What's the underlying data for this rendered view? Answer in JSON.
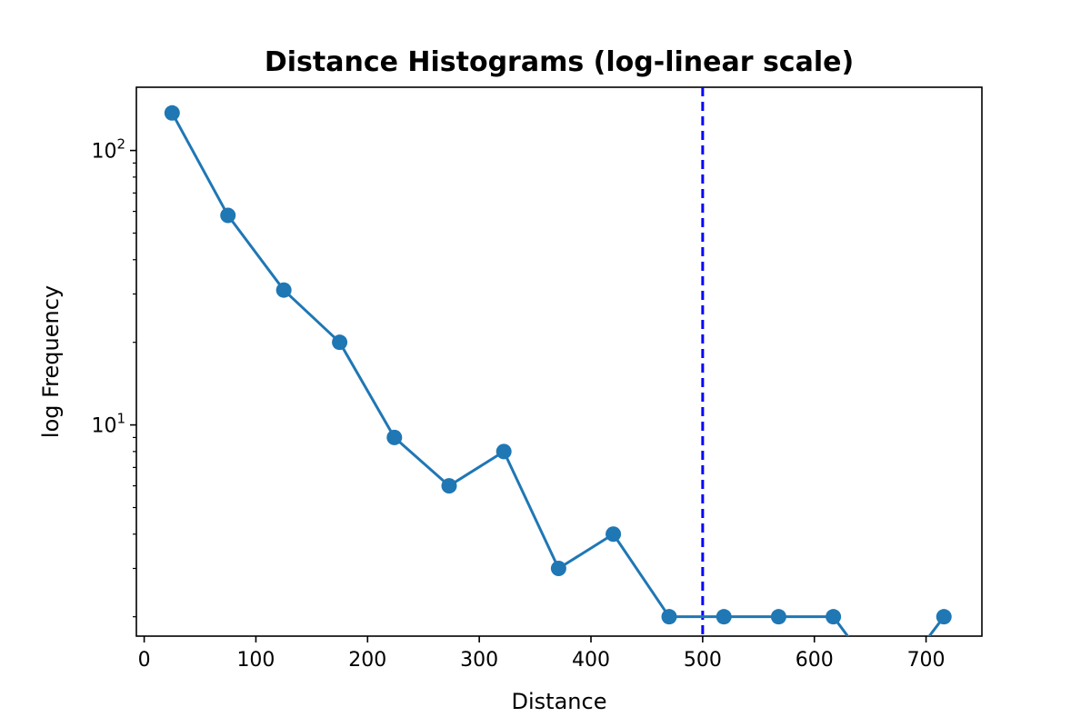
{
  "chart_data": {
    "type": "line",
    "title": "Distance Histograms (log-linear scale)",
    "xlabel": "Distance",
    "ylabel": "log Frequency",
    "xlim": [
      -7,
      750
    ],
    "ylim": [
      1.7,
      170
    ],
    "yscale": "log",
    "grid": false,
    "xticks": [
      0,
      100,
      200,
      300,
      400,
      500,
      600,
      700
    ],
    "yticks": [
      {
        "value": 10,
        "base": "10",
        "exp": "1"
      },
      {
        "value": 100,
        "base": "10",
        "exp": "2"
      }
    ],
    "series": [
      {
        "color": "#1f77b4",
        "x": [
          25,
          75,
          125,
          175,
          224,
          273,
          322,
          371,
          420,
          470,
          519,
          568,
          617,
          666,
          716
        ],
        "y": [
          137,
          58,
          31,
          20,
          9,
          6,
          8,
          3,
          4,
          2,
          2,
          2,
          2,
          0,
          2
        ]
      }
    ],
    "vline": {
      "x": 500,
      "color": "#0000ff",
      "style": "dashed"
    }
  }
}
